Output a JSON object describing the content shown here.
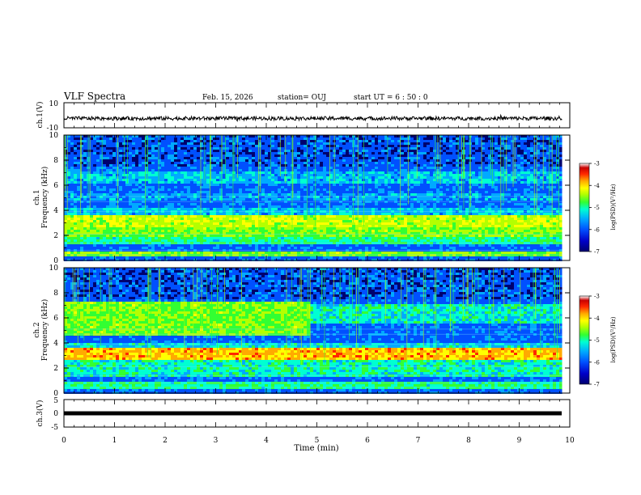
{
  "header": {
    "title": "VLF Spectra",
    "date": "Feb. 15, 2026",
    "station": "station= OUJ",
    "start_ut": "start UT =  6 : 50 : 0"
  },
  "colors": {
    "colormap": [
      "#00006e",
      "#0000c8",
      "#0050ff",
      "#00aaff",
      "#00ffd2",
      "#32ff32",
      "#b4ff00",
      "#ffff00",
      "#ffaa00",
      "#ff2800",
      "#c80000",
      "#ffffff"
    ],
    "trace": "#000000",
    "axis": "#000000"
  },
  "chart_data": [
    {
      "type": "line",
      "id": "ch1-waveform",
      "ylabel": "ch.1(V)",
      "ylim": [
        -10,
        10
      ],
      "yticks": [
        "10",
        "-10"
      ],
      "baseline": -2.5,
      "amplitude_range": [
        -4,
        -1
      ]
    },
    {
      "type": "heatmap",
      "id": "ch1-spectrogram",
      "ylabel_line1": "ch.1",
      "ylabel_line2": "Frequency (kHz)",
      "ylim": [
        0,
        10
      ],
      "yticks": [
        "0",
        "2",
        "4",
        "6",
        "8",
        "10"
      ],
      "colorbar": {
        "label": "log(PSD)(V²/Hz)",
        "ticks": [
          "-3",
          "-4",
          "-5",
          "-6",
          "-7"
        ],
        "range": [
          -7,
          -3
        ]
      },
      "bands_khz": [
        {
          "f0": 0.3,
          "f1": 0.8,
          "level": 0.55
        },
        {
          "f0": 1.2,
          "f1": 1.8,
          "level": 0.45
        },
        {
          "f0": 1.8,
          "f1": 2.6,
          "level": 0.55
        },
        {
          "f0": 2.6,
          "f1": 3.6,
          "level": 0.62
        },
        {
          "f0": 3.6,
          "f1": 4.2,
          "level": 0.35
        },
        {
          "f0": 4.8,
          "f1": 5.4,
          "level": 0.3
        },
        {
          "f0": 6.2,
          "f1": 7.0,
          "level": 0.34
        }
      ]
    },
    {
      "type": "heatmap",
      "id": "ch2-spectrogram",
      "ylabel_line1": "ch.2",
      "ylabel_line2": "Frequency (kHz)",
      "ylim": [
        0,
        10
      ],
      "yticks": [
        "0",
        "2",
        "4",
        "6",
        "8",
        "10"
      ],
      "colorbar": {
        "label": "log(PSD)(V²/Hz)",
        "ticks": [
          "-3",
          "-4",
          "-5",
          "-6",
          "-7"
        ],
        "range": [
          -7,
          -3
        ]
      },
      "bands_khz": [
        {
          "f0": 0.3,
          "f1": 0.9,
          "level": 0.45
        },
        {
          "f0": 1.2,
          "f1": 2.6,
          "level": 0.42
        },
        {
          "f0": 2.6,
          "f1": 3.6,
          "level": 0.75
        },
        {
          "f0": 3.6,
          "f1": 4.0,
          "level": 0.38
        },
        {
          "f0": 4.5,
          "f1": 7.2,
          "level": 0.55,
          "t_end_min": 4.8
        },
        {
          "f0": 5.6,
          "f1": 7.0,
          "level": 0.4,
          "t_start_min": 4.8
        }
      ]
    },
    {
      "type": "line",
      "id": "ch3-waveform",
      "ylabel": "ch.3(V)",
      "ylim": [
        -5,
        5
      ],
      "yticks": [
        "5",
        "0",
        "-5"
      ],
      "baseline": 0
    }
  ],
  "time_axis": {
    "xlabel": "Time (min)",
    "xlim": [
      0,
      10
    ],
    "data_end_min": 9.85,
    "ticks": [
      "0",
      "1",
      "2",
      "3",
      "4",
      "5",
      "6",
      "7",
      "8",
      "9",
      "10"
    ]
  }
}
